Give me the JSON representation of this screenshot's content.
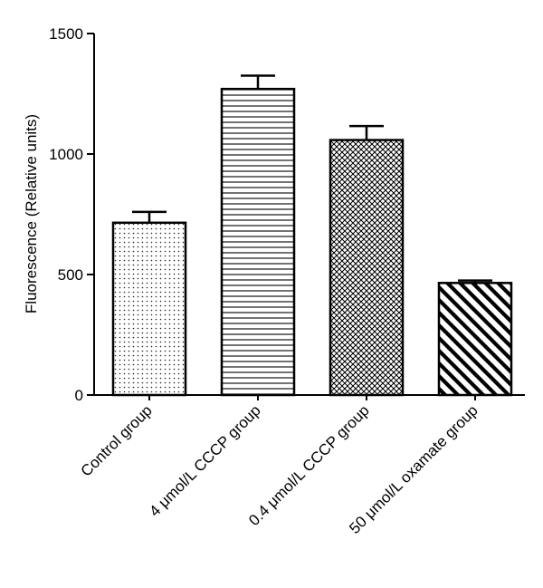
{
  "chart_data": {
    "type": "bar",
    "title": "",
    "xlabel": "",
    "ylabel": "Fluorescence (Relative units)",
    "ylim": [
      0,
      1500
    ],
    "yticks": [
      0,
      500,
      1000,
      1500
    ],
    "grid": false,
    "legend": "none",
    "categories": [
      "Control group",
      "4 μmol/L CCCP group",
      "0.4 μmol/L CCCP group",
      "50 μmol/L oxamate group"
    ],
    "values": [
      715,
      1270,
      1058,
      465
    ],
    "errors": [
      45,
      55,
      58,
      10
    ],
    "patterns": [
      "dots",
      "horizontal-lines",
      "crosshatch",
      "diagonal-stripes"
    ],
    "bar_fill": "#ffffff",
    "stroke_color": "#000000"
  }
}
